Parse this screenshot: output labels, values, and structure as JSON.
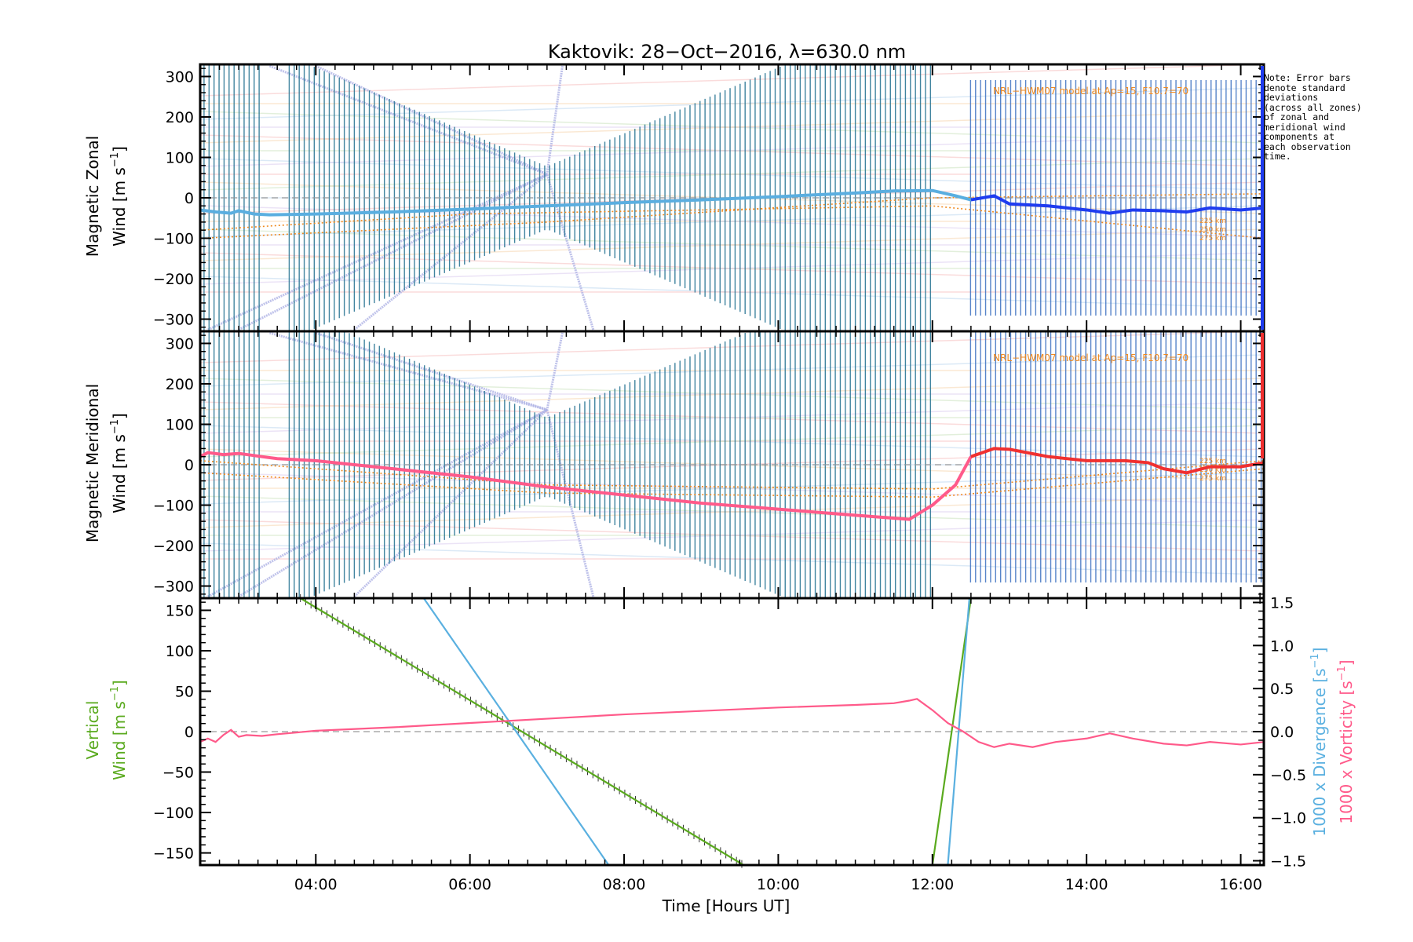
{
  "title": "Kaktovik: 28−Oct−2016, λ=630.0 nm",
  "note_lines": [
    "Note: Error bars",
    "denote standard",
    "deviations",
    "(across all zones)",
    "of zonal and",
    "meridional wind",
    "components at",
    "each observation",
    "time."
  ],
  "model_label": "NRL−HWM07 model at Ap=15, F10.7=70",
  "colors": {
    "zonal": "#1f3cf0",
    "zonal_early": "#5aaee0",
    "meridional": "#f03030",
    "meridional_early": "#ff5a8a",
    "divergence": "#5ab0e0",
    "vorticity": "#ff5a8a",
    "vertical": "#5aaa1e",
    "model": "#f08a20",
    "errorbar": "#1f6f8f",
    "scatter": "#b0b4e6"
  },
  "xaxis": {
    "label": "Time [Hours UT]",
    "ticks": [
      "04:00",
      "06:00",
      "08:00",
      "10:00",
      "12:00",
      "14:00",
      "16:00"
    ],
    "tick_hours": [
      4,
      6,
      8,
      10,
      12,
      14,
      16
    ],
    "range_hours": [
      2.5,
      16.3
    ]
  },
  "chart_data": [
    {
      "type": "line",
      "id": "zonal",
      "ylabel_line1": "Magnetic Zonal",
      "ylabel_line2": "Wind [m s",
      "ylabel_sup": "−1",
      "ylabel_close": "]",
      "ylim": [
        -330,
        330
      ],
      "yticks": [
        300,
        200,
        100,
        0,
        -100,
        -200,
        -300
      ],
      "ytick_labels": [
        "300",
        "200",
        "100",
        "0",
        "−100",
        "−200",
        "−300"
      ],
      "series": [
        {
          "x": [
            2.5,
            2.7,
            2.9,
            3.0,
            3.2,
            3.4,
            4.0,
            5.0,
            6.0,
            7.0,
            8.0,
            9.0,
            10.0,
            11.0,
            11.5,
            12.0,
            12.3,
            12.5,
            12.8,
            13.0,
            13.5,
            14.0,
            14.3,
            14.6,
            15.0,
            15.3,
            15.6,
            16.0,
            16.3
          ],
          "y": [
            -30,
            -35,
            -38,
            -32,
            -40,
            -42,
            -40,
            -35,
            -28,
            -20,
            -12,
            -5,
            3,
            12,
            17,
            18,
            5,
            -5,
            5,
            -15,
            -20,
            -30,
            -38,
            -30,
            -32,
            -35,
            -25,
            -30,
            -25
          ]
        }
      ],
      "model_curves": [
        {
          "x": [
            2.5,
            7.0,
            12.0,
            16.3
          ],
          "y": [
            -100,
            -60,
            0,
            10
          ]
        },
        {
          "x": [
            2.5,
            6.0,
            12.0,
            16.3
          ],
          "y": [
            -80,
            -40,
            -20,
            -100
          ]
        }
      ],
      "model_tags": [
        "225 km",
        "250 km",
        "275 km"
      ]
    },
    {
      "type": "line",
      "id": "meridional",
      "ylabel_line1": "Magnetic Meridional",
      "ylabel_line2": "Wind [m s",
      "ylabel_sup": "−1",
      "ylabel_close": "]",
      "ylim": [
        -330,
        330
      ],
      "yticks": [
        300,
        200,
        100,
        0,
        -100,
        -200,
        -300
      ],
      "ytick_labels": [
        "300",
        "200",
        "100",
        "0",
        "−100",
        "−200",
        "−300"
      ],
      "series": [
        {
          "x": [
            2.5,
            2.6,
            2.8,
            3.0,
            3.3,
            3.5,
            4.0,
            5.0,
            6.0,
            7.0,
            8.0,
            9.0,
            10.0,
            11.0,
            11.7,
            12.0,
            12.3,
            12.5,
            12.8,
            13.0,
            13.5,
            14.0,
            14.5,
            14.8,
            15.0,
            15.3,
            15.6,
            16.0,
            16.3
          ],
          "y": [
            20,
            30,
            25,
            28,
            20,
            15,
            10,
            -10,
            -30,
            -55,
            -75,
            -95,
            -110,
            -125,
            -135,
            -100,
            -50,
            20,
            40,
            38,
            20,
            10,
            10,
            5,
            -10,
            -20,
            -5,
            -5,
            5
          ]
        }
      ],
      "model_curves": [
        {
          "x": [
            2.5,
            7.0,
            12.0,
            16.3
          ],
          "y": [
            10,
            -50,
            -60,
            10
          ]
        },
        {
          "x": [
            2.5,
            7.0,
            12.0,
            16.3
          ],
          "y": [
            -20,
            -70,
            -80,
            -10
          ]
        }
      ],
      "model_tags": [
        "225 km",
        "250 km",
        "275 km"
      ]
    },
    {
      "type": "line",
      "id": "vertical",
      "ylabel_line1": "Vertical",
      "ylabel_line2": "Wind [m s",
      "ylabel_sup": "−1",
      "ylabel_close": "]",
      "ylim": [
        -165,
        165
      ],
      "yticks": [
        150,
        100,
        50,
        0,
        -50,
        -100,
        -150
      ],
      "ytick_labels": [
        "150",
        "100",
        "50",
        "0",
        "−50",
        "−100",
        "−150"
      ],
      "y2label_divergence": "1000 x Divergence [s",
      "y2label_vorticity": "1000 x Vorticity [s",
      "y2lim": [
        -1.55,
        1.55
      ],
      "y2ticks": [
        1.5,
        1.0,
        0.5,
        0.0,
        -0.5,
        -1.0,
        -1.5
      ],
      "y2tick_labels": [
        "1.5",
        "1.0",
        "0.5",
        "0.0",
        "−0.5",
        "−1.0",
        "−1.5"
      ],
      "series": [
        {
          "name": "vertical",
          "axis": "left",
          "x": [
            3.8,
            9.55,
            12.0,
            12.5
          ],
          "y": [
            165,
            -165,
            -165,
            165
          ]
        },
        {
          "name": "divergence",
          "axis": "right",
          "x": [
            5.4,
            7.8,
            12.2,
            12.48
          ],
          "y": [
            1.55,
            -1.55,
            -1.55,
            1.55
          ]
        },
        {
          "name": "vorticity",
          "axis": "right",
          "x": [
            2.5,
            2.6,
            2.7,
            2.8,
            2.9,
            3.0,
            3.1,
            3.3,
            3.5,
            4.0,
            5.0,
            6.0,
            7.0,
            8.0,
            9.0,
            10.0,
            11.0,
            11.5,
            11.7,
            11.8,
            12.0,
            12.2,
            12.4,
            12.6,
            12.8,
            13.0,
            13.3,
            13.6,
            14.0,
            14.3,
            14.6,
            15.0,
            15.3,
            15.6,
            16.0,
            16.3
          ],
          "y": [
            -0.12,
            -0.08,
            -0.12,
            -0.04,
            0.02,
            -0.06,
            -0.04,
            -0.05,
            -0.03,
            0.01,
            0.05,
            0.1,
            0.15,
            0.2,
            0.24,
            0.28,
            0.31,
            0.33,
            0.36,
            0.38,
            0.25,
            0.1,
            0.0,
            -0.12,
            -0.18,
            -0.14,
            -0.18,
            -0.12,
            -0.08,
            -0.02,
            -0.08,
            -0.14,
            -0.16,
            -0.12,
            -0.15,
            -0.12
          ]
        }
      ]
    }
  ]
}
